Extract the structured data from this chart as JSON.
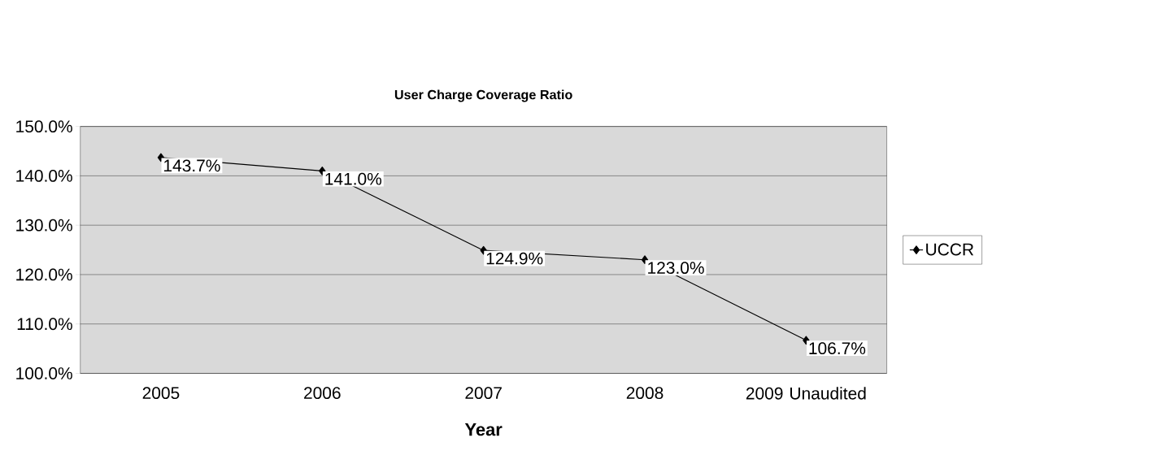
{
  "chart_data": {
    "type": "line",
    "title": "User Charge Coverage Ratio",
    "xlabel": "Year",
    "categories": [
      "2005",
      "2006",
      "2007",
      "2008",
      "2009 Unaudited"
    ],
    "series": [
      {
        "name": "UCCR",
        "color": "#000000",
        "values": [
          143.7,
          141.0,
          124.9,
          123.0,
          106.7
        ],
        "value_labels": [
          "143.7%",
          "141.0%",
          "124.9%",
          "123.0%",
          "106.7%"
        ]
      }
    ],
    "ylim": [
      100,
      150
    ],
    "yticks": [
      {
        "value": 100,
        "label": "100.0%"
      },
      {
        "value": 110,
        "label": "110.0%"
      },
      {
        "value": 120,
        "label": "120.0%"
      },
      {
        "value": 130,
        "label": "130.0%"
      },
      {
        "value": 140,
        "label": "140.0%"
      },
      {
        "value": 150,
        "label": "150.0%"
      }
    ],
    "grid": "y",
    "legend": "right",
    "marker": "diamond",
    "line_style": "solid"
  }
}
